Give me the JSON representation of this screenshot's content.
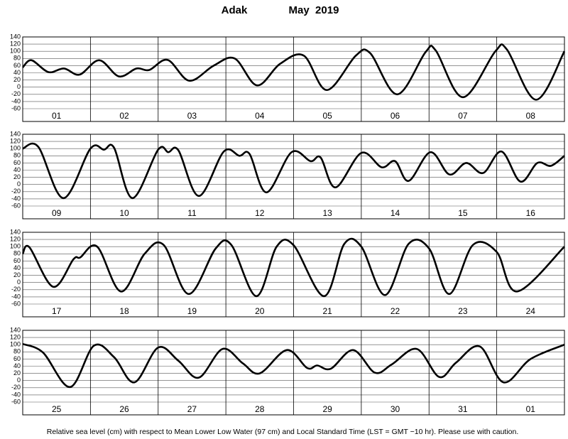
{
  "header": {
    "station": "Adak",
    "date": "May  2019"
  },
  "footer": "Relative sea level (cm) with respect to Mean Lower Low Water (97 cm) and Local Standard Time (LST = GMT −10 hr). Please use with caution.",
  "chart_data": [
    {
      "type": "line",
      "categories": [
        "01",
        "02",
        "03",
        "04",
        "05",
        "06",
        "07",
        "08"
      ],
      "xlim": [
        0,
        8
      ],
      "ylim": [
        -60,
        140
      ],
      "yticks": [
        -60,
        -40,
        -20,
        0,
        20,
        40,
        60,
        80,
        100,
        120,
        140
      ],
      "grid": true,
      "series": [
        {
          "color": "#000000",
          "x": [
            0,
            0.13,
            0.38,
            0.61,
            0.84,
            1.13,
            1.42,
            1.68,
            1.87,
            2.14,
            2.46,
            2.82,
            3.13,
            3.46,
            3.8,
            4.15,
            4.49,
            4.92,
            5.13,
            5.53,
            5.95,
            6.1,
            6.5,
            6.98,
            7.15,
            7.58,
            8.0
          ],
          "values": [
            55,
            75,
            42,
            52,
            35,
            75,
            30,
            52,
            48,
            76,
            18,
            60,
            80,
            5,
            65,
            88,
            -8,
            88,
            95,
            -20,
            98,
            102,
            -28,
            100,
            105,
            -35,
            100
          ]
        }
      ]
    },
    {
      "type": "line",
      "categories": [
        "09",
        "10",
        "11",
        "12",
        "13",
        "14",
        "15",
        "16"
      ],
      "xlim": [
        0,
        8
      ],
      "ylim": [
        -60,
        140
      ],
      "yticks": [
        -60,
        -40,
        -20,
        0,
        20,
        40,
        60,
        80,
        100,
        120,
        140
      ],
      "grid": true,
      "series": [
        {
          "color": "#000000",
          "x": [
            0,
            0.23,
            0.6,
            1.0,
            1.2,
            1.35,
            1.62,
            2.0,
            2.15,
            2.3,
            2.6,
            2.97,
            3.2,
            3.35,
            3.6,
            3.97,
            4.25,
            4.4,
            4.62,
            5.0,
            5.3,
            5.5,
            5.7,
            6.02,
            6.3,
            6.55,
            6.8,
            7.07,
            7.35,
            7.6,
            7.8,
            8.0
          ],
          "values": [
            100,
            105,
            -38,
            100,
            97,
            102,
            -38,
            97,
            90,
            95,
            -32,
            92,
            80,
            85,
            -22,
            90,
            65,
            75,
            -8,
            88,
            48,
            65,
            10,
            90,
            28,
            60,
            32,
            92,
            8,
            60,
            52,
            80
          ]
        }
      ]
    },
    {
      "type": "line",
      "categories": [
        "17",
        "18",
        "19",
        "20",
        "21",
        "22",
        "23",
        "24"
      ],
      "xlim": [
        0,
        8
      ],
      "ylim": [
        -60,
        140
      ],
      "yticks": [
        -60,
        -40,
        -20,
        0,
        20,
        40,
        60,
        80,
        100,
        120,
        140
      ],
      "grid": true,
      "series": [
        {
          "color": "#000000",
          "x": [
            0,
            0.1,
            0.45,
            0.75,
            0.85,
            1.1,
            1.45,
            1.8,
            2.08,
            2.45,
            2.85,
            3.08,
            3.45,
            3.75,
            4.0,
            4.45,
            4.75,
            5.0,
            5.35,
            5.7,
            6.0,
            6.3,
            6.65,
            7.0,
            7.3,
            8.0
          ],
          "values": [
            80,
            98,
            -12,
            65,
            70,
            100,
            -25,
            80,
            105,
            -32,
            95,
            105,
            -38,
            100,
            104,
            -38,
            108,
            100,
            -35,
            108,
            95,
            -32,
            105,
            85,
            -25,
            100
          ]
        }
      ]
    },
    {
      "type": "line",
      "categories": [
        "25",
        "26",
        "27",
        "28",
        "29",
        "30",
        "31",
        "01"
      ],
      "xlim": [
        0,
        8
      ],
      "ylim": [
        -60,
        140
      ],
      "yticks": [
        -60,
        -40,
        -20,
        0,
        20,
        40,
        60,
        80,
        100,
        120,
        140
      ],
      "grid": true,
      "series": [
        {
          "color": "#000000",
          "x": [
            0,
            0.3,
            0.7,
            1.05,
            1.35,
            1.65,
            2.0,
            2.3,
            2.6,
            2.95,
            3.25,
            3.5,
            3.9,
            4.2,
            4.35,
            4.55,
            4.88,
            5.2,
            5.45,
            5.82,
            6.15,
            6.4,
            6.75,
            7.1,
            7.5,
            8.0
          ],
          "values": [
            102,
            78,
            -18,
            97,
            65,
            -5,
            92,
            55,
            8,
            88,
            48,
            20,
            85,
            35,
            42,
            33,
            85,
            22,
            45,
            88,
            10,
            50,
            95,
            -5,
            60,
            100
          ]
        }
      ]
    }
  ]
}
